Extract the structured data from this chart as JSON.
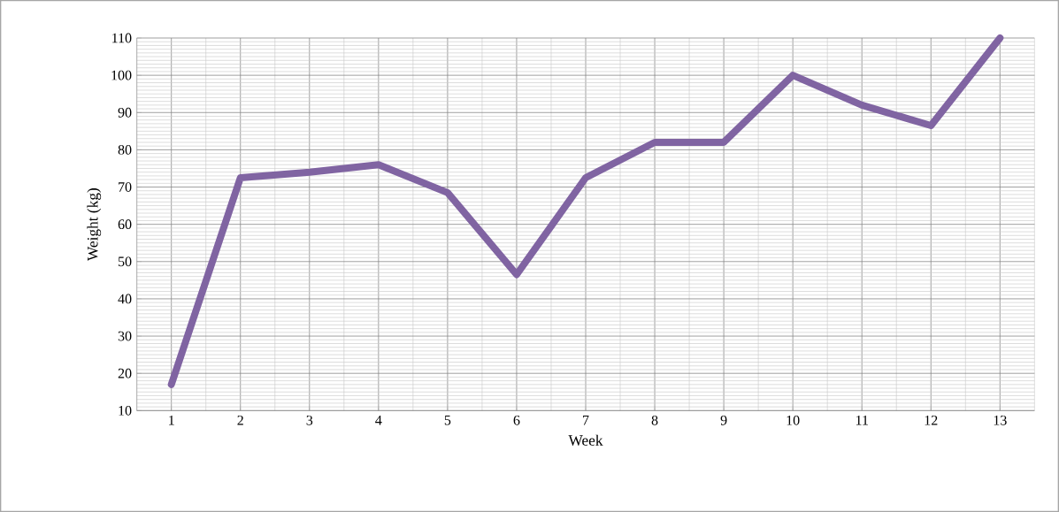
{
  "chart_data": {
    "type": "line",
    "xlabel": "Week",
    "ylabel": "Weight (kg)",
    "categories": [
      "1",
      "2",
      "3",
      "4",
      "5",
      "6",
      "7",
      "8",
      "9",
      "10",
      "11",
      "12",
      "13"
    ],
    "series": [
      {
        "color": "#8064a2",
        "values": [
          17,
          72.5,
          74,
          76,
          68.5,
          46.5,
          72.5,
          82,
          82,
          100,
          92,
          86.5,
          110
        ]
      }
    ],
    "ylim": [
      10,
      110
    ],
    "yticks": [
      10,
      20,
      30,
      40,
      50,
      60,
      70,
      80,
      90,
      100,
      110
    ],
    "grid": true,
    "marker": "none",
    "line_style": "solid"
  }
}
